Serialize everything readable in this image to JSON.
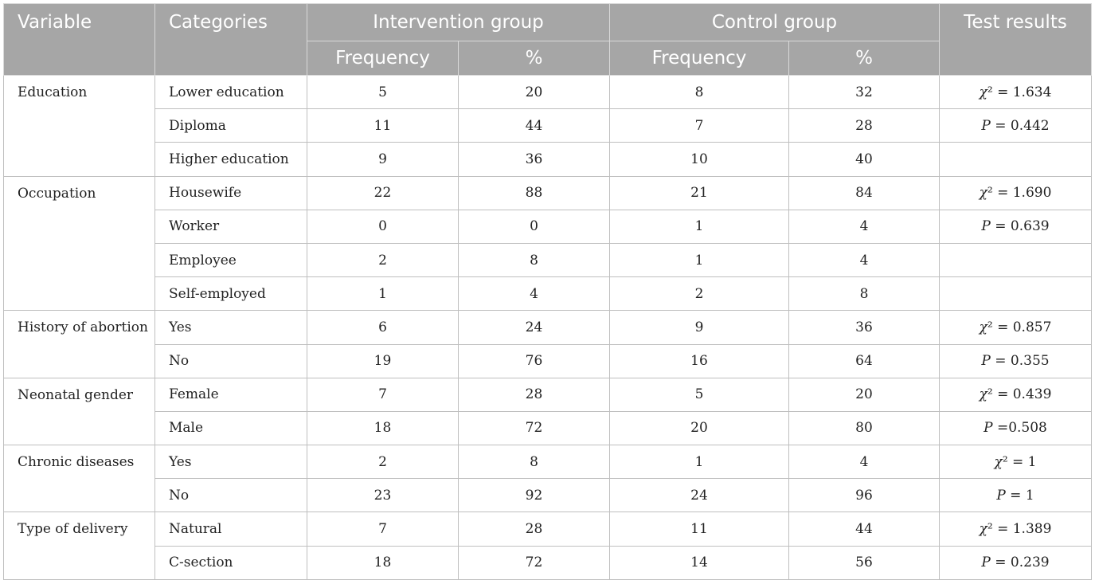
{
  "table": {
    "headers": {
      "variable": "Variable",
      "categories": "Categories",
      "intervention": "Intervention group",
      "control": "Control group",
      "test": "Test results",
      "frequency": "Frequency",
      "percent": "%"
    },
    "groups": [
      {
        "variable": "Education",
        "rows": [
          {
            "category": "Lower education",
            "int_freq": "5",
            "int_pct": "20",
            "ctl_freq": "8",
            "ctl_pct": "32",
            "test": "χ² = 1.634"
          },
          {
            "category": "Diploma",
            "int_freq": "11",
            "int_pct": "44",
            "ctl_freq": "7",
            "ctl_pct": "28",
            "test": "P = 0.442"
          },
          {
            "category": "Higher education",
            "int_freq": "9",
            "int_pct": "36",
            "ctl_freq": "10",
            "ctl_pct": "40",
            "test": ""
          }
        ]
      },
      {
        "variable": "Occupation",
        "rows": [
          {
            "category": "Housewife",
            "int_freq": "22",
            "int_pct": "88",
            "ctl_freq": "21",
            "ctl_pct": "84",
            "test": "χ² = 1.690"
          },
          {
            "category": "Worker",
            "int_freq": "0",
            "int_pct": "0",
            "ctl_freq": "1",
            "ctl_pct": "4",
            "test": "P = 0.639"
          },
          {
            "category": "Employee",
            "int_freq": "2",
            "int_pct": "8",
            "ctl_freq": "1",
            "ctl_pct": "4",
            "test": ""
          },
          {
            "category": "Self-employed",
            "int_freq": "1",
            "int_pct": "4",
            "ctl_freq": "2",
            "ctl_pct": "8",
            "test": ""
          }
        ]
      },
      {
        "variable": "History of abortion",
        "rows": [
          {
            "category": "Yes",
            "int_freq": "6",
            "int_pct": "24",
            "ctl_freq": "9",
            "ctl_pct": "36",
            "test": "χ² = 0.857"
          },
          {
            "category": "No",
            "int_freq": "19",
            "int_pct": "76",
            "ctl_freq": "16",
            "ctl_pct": "64",
            "test": "P = 0.355"
          }
        ]
      },
      {
        "variable": "Neonatal gender",
        "rows": [
          {
            "category": "Female",
            "int_freq": "7",
            "int_pct": "28",
            "ctl_freq": "5",
            "ctl_pct": "20",
            "test": "χ² = 0.439"
          },
          {
            "category": "Male",
            "int_freq": "18",
            "int_pct": "72",
            "ctl_freq": "20",
            "ctl_pct": "80",
            "test": "P =0.508"
          }
        ]
      },
      {
        "variable": "Chronic diseases",
        "rows": [
          {
            "category": "Yes",
            "int_freq": "2",
            "int_pct": "8",
            "ctl_freq": "1",
            "ctl_pct": "4",
            "test": "χ² = 1"
          },
          {
            "category": "No",
            "int_freq": "23",
            "int_pct": "92",
            "ctl_freq": "24",
            "ctl_pct": "96",
            "test": "P = 1"
          }
        ]
      },
      {
        "variable": "Type of delivery",
        "rows": [
          {
            "category": "Natural",
            "int_freq": "7",
            "int_pct": "28",
            "ctl_freq": "11",
            "ctl_pct": "44",
            "test": "χ² = 1.389"
          },
          {
            "category": "C-section",
            "int_freq": "18",
            "int_pct": "72",
            "ctl_freq": "14",
            "ctl_pct": "56",
            "test": "P = 0.239"
          }
        ]
      }
    ]
  },
  "colors": {
    "header_bg": "#a6a6a6",
    "header_text": "#ffffff",
    "border": "#bfbfbf",
    "text": "#222222"
  }
}
